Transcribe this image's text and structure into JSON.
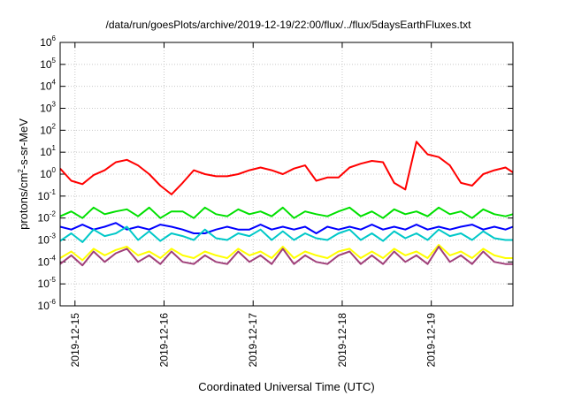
{
  "chart_data": {
    "type": "line",
    "title": "/data/run/goesPlots/archive/2019-12-19/22:00/flux/../flux/5daysEarthFluxes.txt",
    "xlabel": "Coordinated Universal Time (UTC)",
    "ylabel": "protons/cm2-s-sr-MeV",
    "yscale": "log",
    "ylim": [
      1e-06,
      1000000.0
    ],
    "xlim": [
      "2019-12-14T20:00",
      "2019-12-19T22:00"
    ],
    "x_ticks": [
      "2019-12-15",
      "2019-12-16",
      "2019-12-17",
      "2019-12-18",
      "2019-12-19"
    ],
    "y_ticks": [
      {
        "base": "10",
        "exp": "6"
      },
      {
        "base": "10",
        "exp": "5"
      },
      {
        "base": "10",
        "exp": "4"
      },
      {
        "base": "10",
        "exp": "3"
      },
      {
        "base": "10",
        "exp": "2"
      },
      {
        "base": "10",
        "exp": "1"
      },
      {
        "base": "10",
        "exp": "0"
      },
      {
        "base": "10",
        "exp": "-1"
      },
      {
        "base": "10",
        "exp": "-2"
      },
      {
        "base": "10",
        "exp": "-3"
      },
      {
        "base": "10",
        "exp": "-4"
      },
      {
        "base": "10",
        "exp": "-5"
      },
      {
        "base": "10",
        "exp": "-6"
      }
    ],
    "grid": true,
    "x": [
      "2019-12-14T20:00",
      "2019-12-14T23:00",
      "2019-12-15T02:00",
      "2019-12-15T05:00",
      "2019-12-15T08:00",
      "2019-12-15T11:00",
      "2019-12-15T14:00",
      "2019-12-15T17:00",
      "2019-12-15T20:00",
      "2019-12-15T23:00",
      "2019-12-16T02:00",
      "2019-12-16T05:00",
      "2019-12-16T08:00",
      "2019-12-16T11:00",
      "2019-12-16T14:00",
      "2019-12-16T17:00",
      "2019-12-16T20:00",
      "2019-12-16T23:00",
      "2019-12-17T02:00",
      "2019-12-17T05:00",
      "2019-12-17T08:00",
      "2019-12-17T11:00",
      "2019-12-17T14:00",
      "2019-12-17T17:00",
      "2019-12-17T20:00",
      "2019-12-17T23:00",
      "2019-12-18T02:00",
      "2019-12-18T05:00",
      "2019-12-18T08:00",
      "2019-12-18T11:00",
      "2019-12-18T14:00",
      "2019-12-18T17:00",
      "2019-12-18T20:00",
      "2019-12-18T23:00",
      "2019-12-19T02:00",
      "2019-12-19T05:00",
      "2019-12-19T08:00",
      "2019-12-19T11:00",
      "2019-12-19T14:00",
      "2019-12-19T17:00",
      "2019-12-19T20:00",
      "2019-12-19T22:00"
    ],
    "series": [
      {
        "color": "#ff0000",
        "values": [
          1.8,
          0.5,
          0.35,
          0.9,
          1.5,
          3.5,
          4.5,
          2.5,
          1.0,
          0.3,
          0.12,
          0.4,
          1.5,
          1.0,
          0.8,
          0.8,
          1.0,
          1.5,
          2.0,
          1.5,
          1.0,
          1.8,
          2.5,
          0.5,
          0.7,
          0.7,
          2.0,
          3.0,
          4.0,
          3.5,
          0.4,
          0.2,
          30.0,
          8.0,
          6.0,
          2.5,
          0.4,
          0.3,
          1.0,
          1.5,
          2.0,
          1.2
        ]
      },
      {
        "color": "#00e000",
        "values": [
          0.012,
          0.02,
          0.01,
          0.03,
          0.015,
          0.02,
          0.025,
          0.012,
          0.03,
          0.01,
          0.02,
          0.02,
          0.01,
          0.03,
          0.015,
          0.012,
          0.025,
          0.015,
          0.02,
          0.012,
          0.03,
          0.01,
          0.02,
          0.015,
          0.012,
          0.02,
          0.03,
          0.012,
          0.02,
          0.01,
          0.025,
          0.015,
          0.02,
          0.012,
          0.03,
          0.015,
          0.02,
          0.01,
          0.025,
          0.015,
          0.012,
          0.015
        ]
      },
      {
        "color": "#0000ff",
        "values": [
          0.004,
          0.003,
          0.005,
          0.003,
          0.004,
          0.006,
          0.003,
          0.004,
          0.003,
          0.005,
          0.004,
          0.003,
          0.002,
          0.002,
          0.003,
          0.004,
          0.003,
          0.003,
          0.005,
          0.003,
          0.004,
          0.003,
          0.004,
          0.002,
          0.004,
          0.003,
          0.004,
          0.003,
          0.005,
          0.003,
          0.004,
          0.003,
          0.005,
          0.003,
          0.004,
          0.003,
          0.004,
          0.005,
          0.003,
          0.004,
          0.003,
          0.004
        ]
      },
      {
        "color": "#00c8c8",
        "values": [
          0.0009,
          0.002,
          0.0008,
          0.003,
          0.0015,
          0.002,
          0.004,
          0.001,
          0.0025,
          0.0009,
          0.002,
          0.0015,
          0.001,
          0.003,
          0.0012,
          0.001,
          0.002,
          0.0015,
          0.003,
          0.001,
          0.0025,
          0.001,
          0.002,
          0.0012,
          0.001,
          0.002,
          0.003,
          0.001,
          0.002,
          0.0009,
          0.0025,
          0.0012,
          0.002,
          0.001,
          0.003,
          0.0015,
          0.002,
          0.001,
          0.0025,
          0.0012,
          0.001,
          0.001
        ]
      },
      {
        "color": "#ffff00",
        "values": [
          0.00015,
          0.0003,
          0.00012,
          0.0004,
          0.0002,
          0.00035,
          0.0005,
          0.0002,
          0.0003,
          0.00015,
          0.0004,
          0.0002,
          0.00015,
          0.0003,
          0.0002,
          0.00015,
          0.0004,
          0.0002,
          0.0003,
          0.00015,
          0.0005,
          0.00015,
          0.0003,
          0.0002,
          0.00015,
          0.0003,
          0.0004,
          0.00015,
          0.0003,
          0.00015,
          0.0004,
          0.0002,
          0.0003,
          0.00015,
          0.0006,
          0.0002,
          0.0003,
          0.00015,
          0.0004,
          0.0002,
          0.00015,
          0.00015
        ]
      },
      {
        "color": "#a0407a",
        "values": [
          8e-05,
          0.0002,
          7e-05,
          0.0003,
          0.0001,
          0.00025,
          0.0004,
          0.0001,
          0.0002,
          8e-05,
          0.0003,
          0.0001,
          8e-05,
          0.0002,
          0.0001,
          8e-05,
          0.0003,
          0.0001,
          0.0002,
          8e-05,
          0.0004,
          8e-05,
          0.0002,
          0.0001,
          8e-05,
          0.0002,
          0.0003,
          8e-05,
          0.0002,
          8e-05,
          0.0003,
          0.0001,
          0.0002,
          8e-05,
          0.0005,
          0.0001,
          0.0002,
          8e-05,
          0.0003,
          0.0001,
          8e-05,
          8e-05
        ]
      }
    ]
  }
}
